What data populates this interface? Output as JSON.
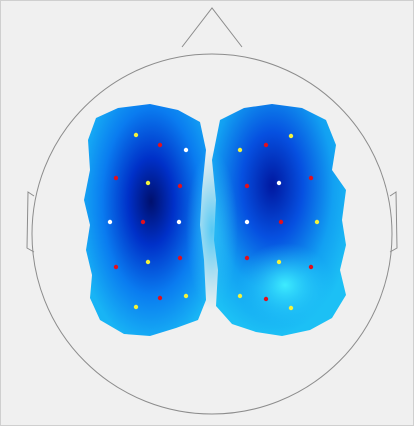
{
  "marker_colors": [
    "#e0101e",
    "#f2f23c",
    "#ffffff"
  ],
  "head_color": "#8c8c8c",
  "background": "#f0f0f0"
}
